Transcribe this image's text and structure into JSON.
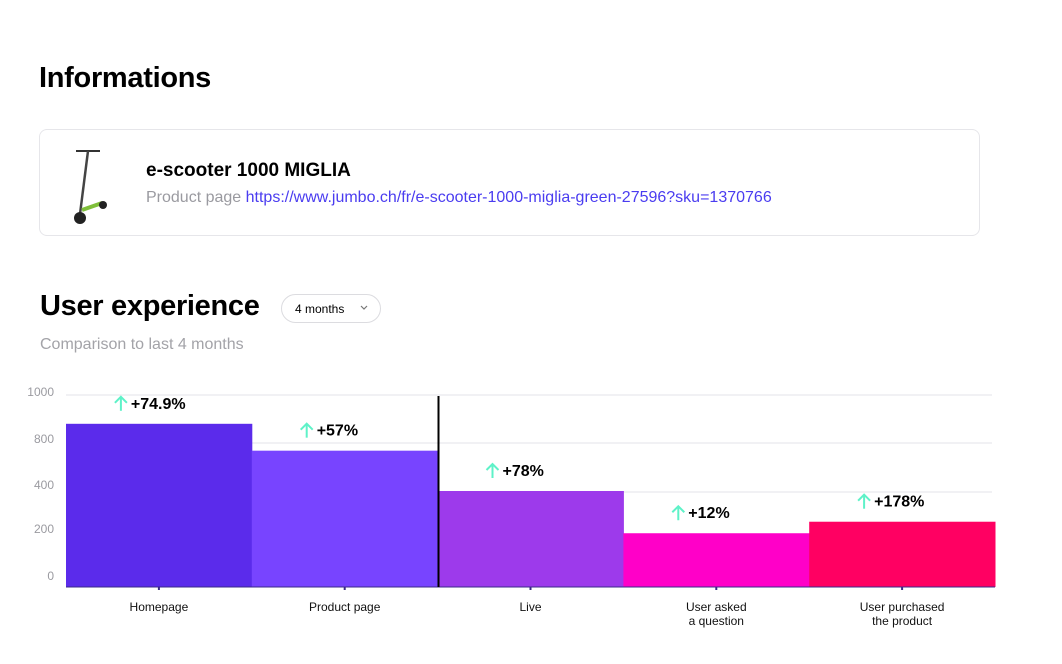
{
  "info": {
    "title": "Informations",
    "product_name": "e-scooter 1000 MIGLIA",
    "product_page_label": "Product page",
    "product_url": "https://www.jumbo.ch/fr/e-scooter-1000-miglia-green-27596?sku=1370766"
  },
  "ux": {
    "title": "User experience",
    "period_select": "4 months",
    "subtitle": "Comparison to last 4 months"
  },
  "chart_data": {
    "type": "bar",
    "categories": [
      "Homepage",
      "Product page",
      "Live",
      "User asked a question",
      "User purchased the product"
    ],
    "values": [
      850,
      710,
      500,
      280,
      340
    ],
    "changes": [
      "+74.9%",
      "+57%",
      "+78%",
      "+12%",
      "+178%"
    ],
    "colors": [
      "#5b2beb",
      "#7844ff",
      "#9d3aeb",
      "#ff00c8",
      "#ff0062"
    ],
    "change_color": "#5ef2c8",
    "y_ticks": [
      "1000",
      "800",
      "400",
      "200",
      "0"
    ],
    "ylim": [
      0,
      1000
    ],
    "grid": true
  }
}
